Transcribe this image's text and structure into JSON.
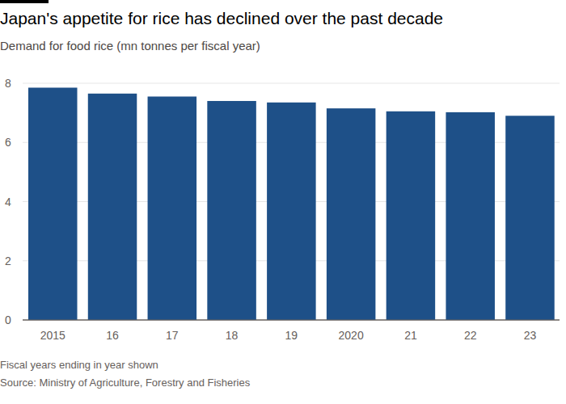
{
  "chart_data": {
    "type": "bar",
    "title": "Japan's appetite for rice has declined over the past decade",
    "subtitle": "Demand for food rice (mn tonnes per fiscal year)",
    "note": "Fiscal years ending in year shown",
    "source": "Source: Ministry of Agriculture, Forestry and Fisheries",
    "categories": [
      "2015",
      "16",
      "17",
      "18",
      "19",
      "2020",
      "21",
      "22",
      "23"
    ],
    "values": [
      7.85,
      7.65,
      7.55,
      7.4,
      7.35,
      7.15,
      7.05,
      7.02,
      6.9
    ],
    "color": "#1e5088",
    "ylim": [
      0,
      8
    ],
    "yticks": [
      0,
      2,
      4,
      6,
      8
    ],
    "grid": true
  }
}
